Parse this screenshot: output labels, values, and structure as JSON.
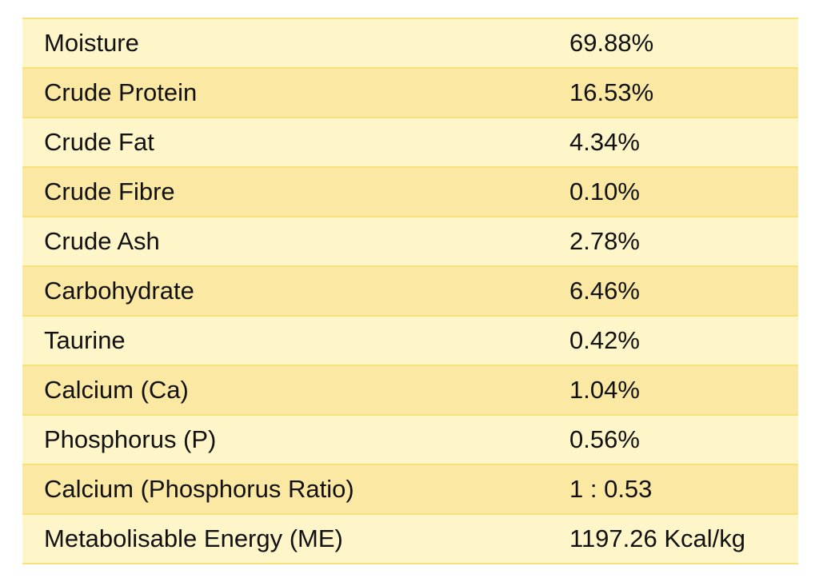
{
  "table": {
    "rows": [
      [
        "Moisture",
        "69.88%"
      ],
      [
        "Crude Protein",
        "16.53%"
      ],
      [
        "Crude Fat",
        "4.34%"
      ],
      [
        "Crude Fibre",
        "0.10%"
      ],
      [
        "Crude Ash",
        "2.78%"
      ],
      [
        "Carbohydrate",
        "6.46%"
      ],
      [
        "Taurine",
        "0.42%"
      ],
      [
        "Calcium (Ca)",
        "1.04%"
      ],
      [
        "Phosphorus (P)",
        "0.56%"
      ],
      [
        "Calcium (Phosphorus Ratio)",
        "1 : 0.53"
      ],
      [
        "Metabolisable Energy (ME)",
        "1197.26 Kcal/kg"
      ]
    ]
  }
}
